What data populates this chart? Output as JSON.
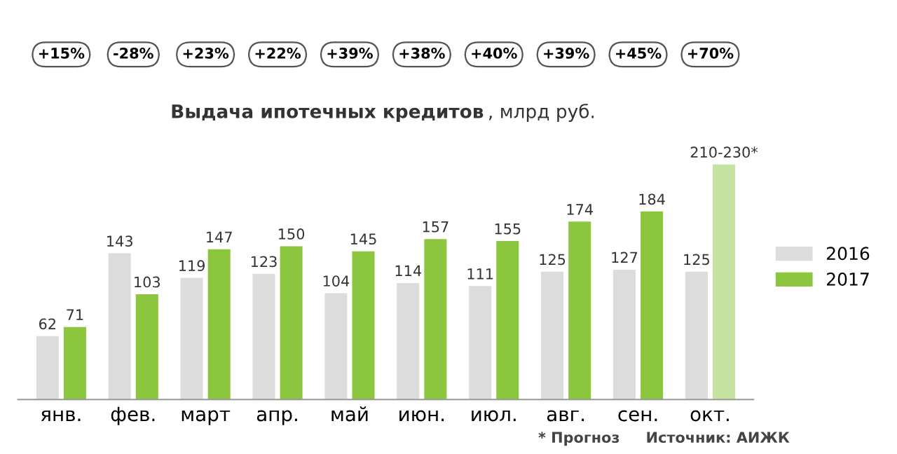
{
  "chart_data": {
    "type": "bar",
    "title": "Выдача ипотечных кредитов, млрд руб.",
    "categories": [
      "янв.",
      "фев.",
      "март",
      "апр.",
      "май",
      "июн.",
      "июл.",
      "авг.",
      "сен.",
      "окт."
    ],
    "series": [
      {
        "name": "2016",
        "color": "#dcdcdc",
        "values": [
          62,
          143,
          119,
          123,
          104,
          114,
          111,
          125,
          127,
          125
        ],
        "value_labels": [
          "62",
          "143",
          "119",
          "123",
          "104",
          "114",
          "111",
          "125",
          "127",
          "125"
        ]
      },
      {
        "name": "2017",
        "color": "#8cc63e",
        "colors": [
          "#8cc63e",
          "#8cc63e",
          "#8cc63e",
          "#8cc63e",
          "#8cc63e",
          "#8cc63e",
          "#8cc63e",
          "#8cc63e",
          "#8cc63e",
          "#c4e3a0"
        ],
        "values": [
          71,
          103,
          147,
          150,
          145,
          157,
          155,
          174,
          184,
          230
        ],
        "value_labels": [
          "71",
          "103",
          "147",
          "150",
          "145",
          "157",
          "155",
          "174",
          "184",
          "210-230*"
        ]
      }
    ],
    "annotations": [
      "+15%",
      "-28%",
      "+23%",
      "+22%",
      "+39%",
      "+38%",
      "+40%",
      "+39%",
      "+45%",
      "+70%",
      "* Прогноз",
      "Источник: АИЖК"
    ],
    "legend": "right"
  }
}
